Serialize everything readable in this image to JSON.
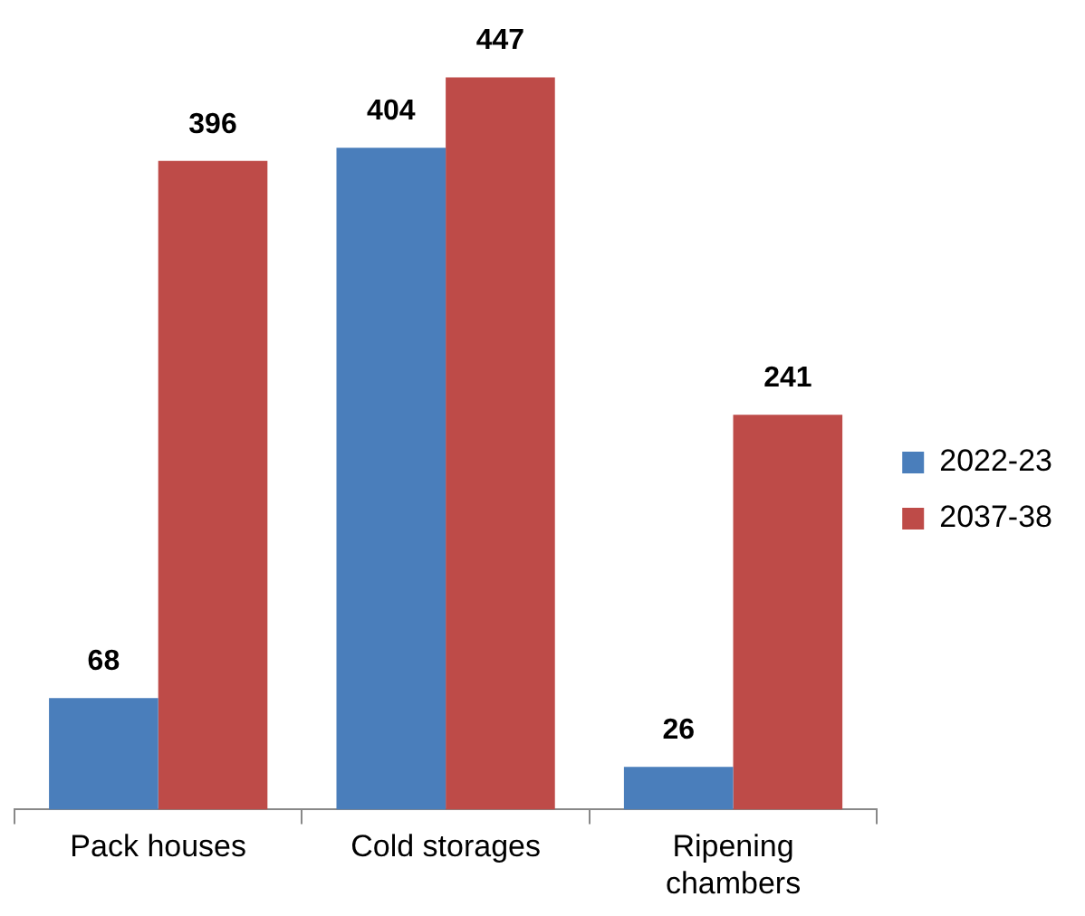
{
  "chart_data": {
    "type": "bar",
    "categories": [
      "Pack houses",
      "Cold storages",
      "Ripening chambers"
    ],
    "series": [
      {
        "name": "2022-23",
        "color": "#4a7ebb",
        "values": [
          68,
          404,
          26
        ]
      },
      {
        "name": "2037-38",
        "color": "#be4b48",
        "values": [
          396,
          447,
          241
        ]
      }
    ],
    "data_labels": true,
    "legend": "right",
    "grid": false
  }
}
